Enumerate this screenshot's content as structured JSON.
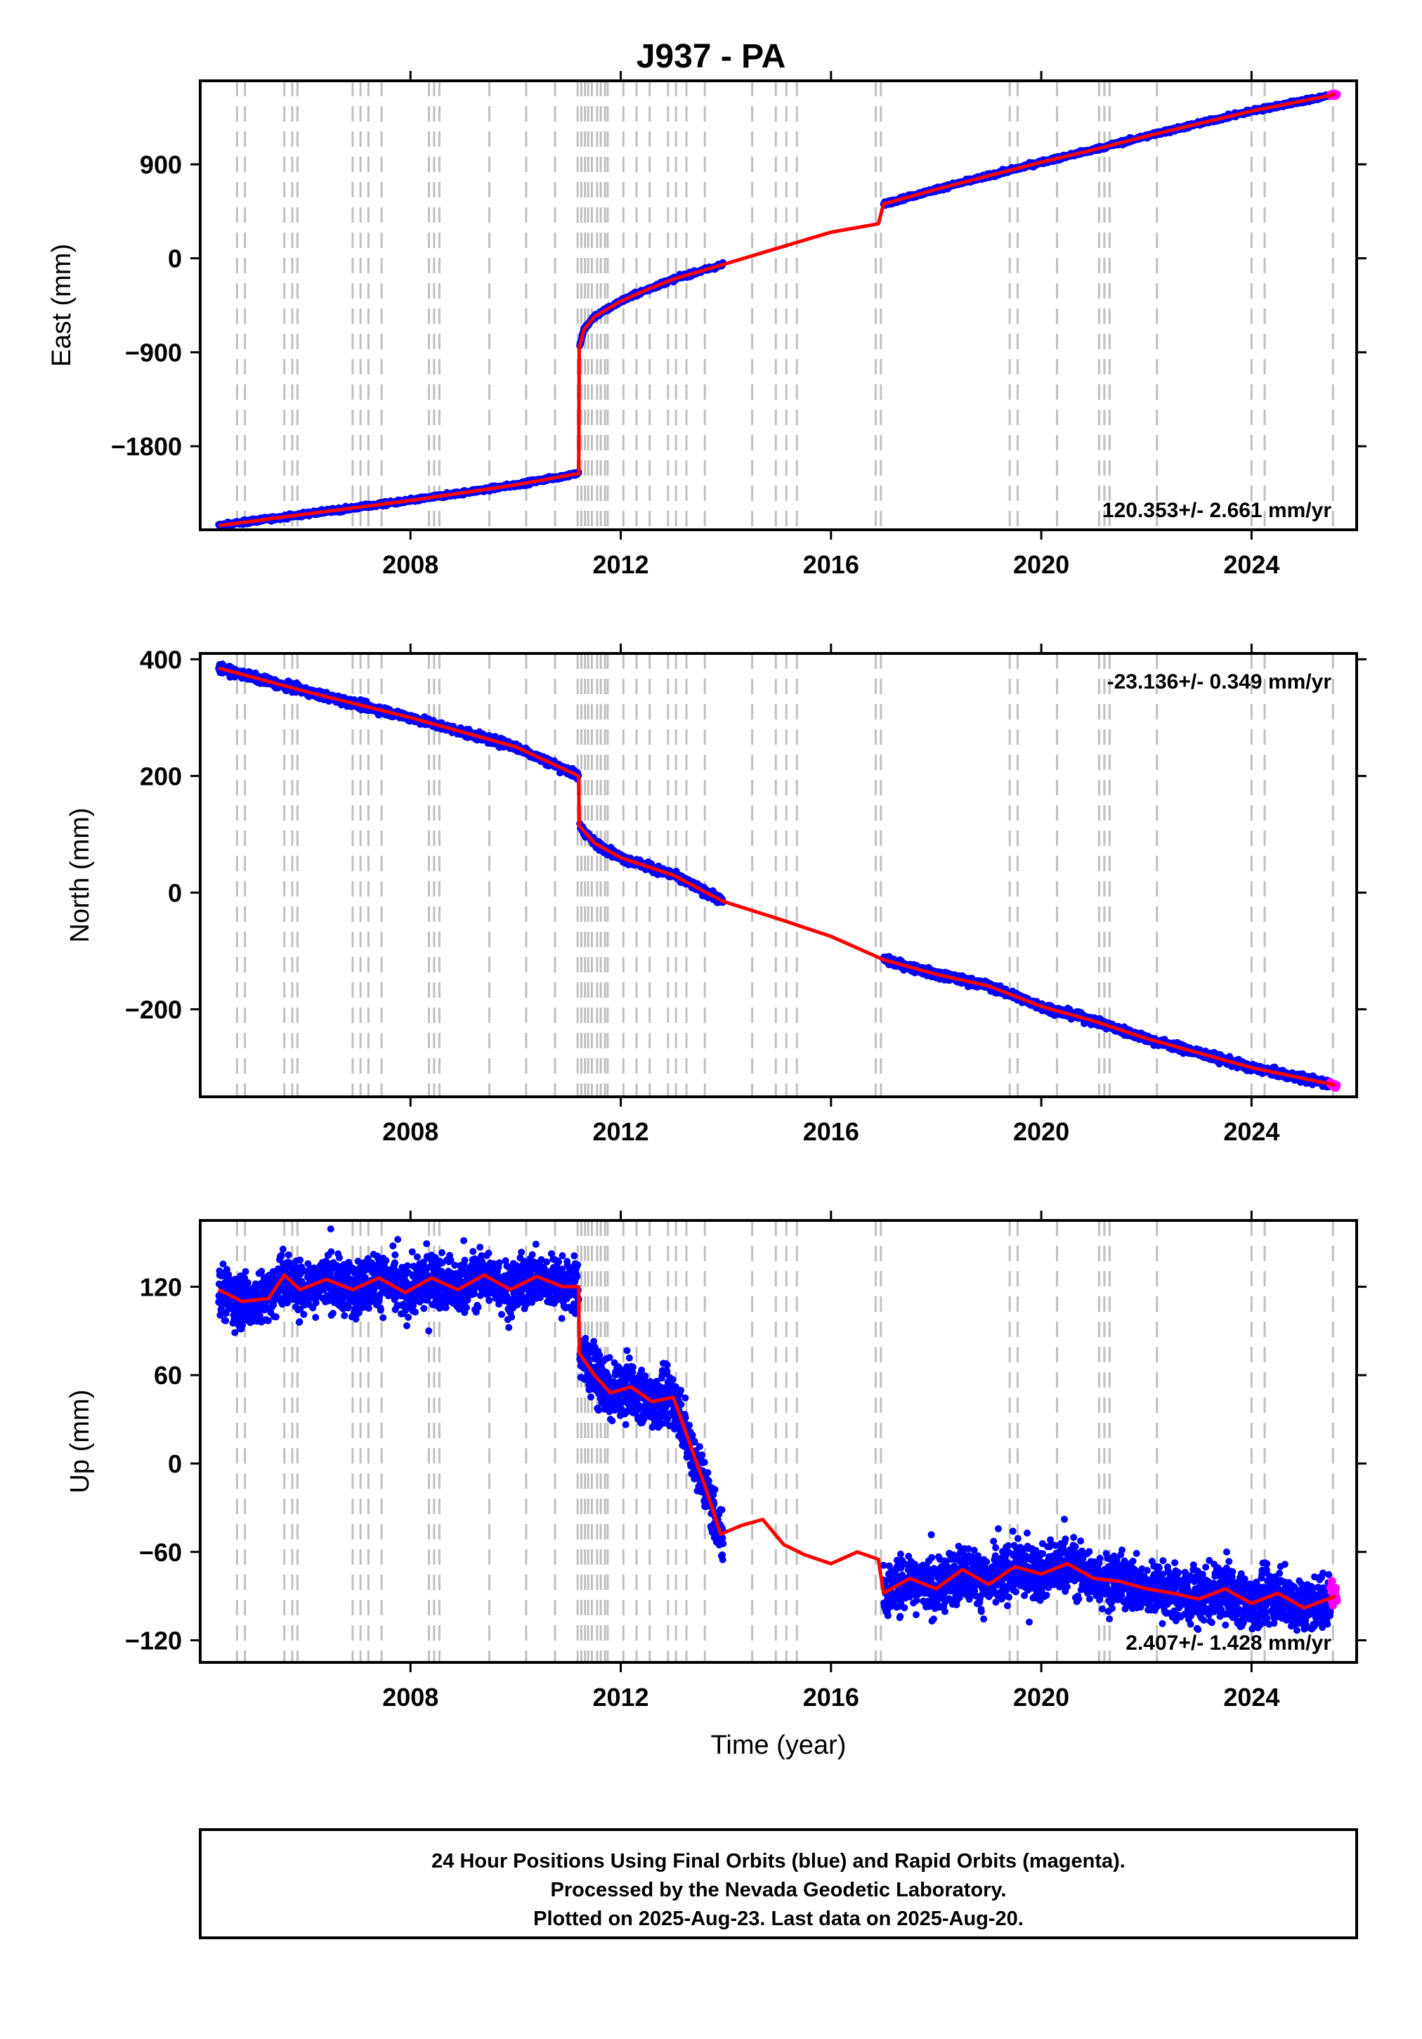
{
  "title": "J937 - PA",
  "colors": {
    "final_orbits": "#0000ff",
    "rapid_orbits": "#ff00ff",
    "model": "#ff0000",
    "event_lines": "#c0c0c0"
  },
  "footer": {
    "lines": [
      "24 Hour Positions Using Final Orbits (blue) and Rapid Orbits (magenta).",
      "Processed by the Nevada Geodetic Laboratory.",
      "Plotted on 2025-Aug-23. Last data on 2025-Aug-20."
    ]
  },
  "chart_data": [
    {
      "type": "scatter",
      "component": "East",
      "ylabel": "East (mm)",
      "xlabel": "",
      "xlim": [
        2004.0,
        2026.0
      ],
      "ylim": [
        -2600,
        1700
      ],
      "xticks": [
        2008,
        2012,
        2016,
        2020,
        2024
      ],
      "yticks": [
        -1800,
        -900,
        0,
        900
      ],
      "ytick_labels": [
        "−1800",
        "−900",
        "0",
        "900"
      ],
      "rate_label": "120.353+/- 2.661 mm/yr",
      "rate_position": "bottom-right",
      "model_line": {
        "x": [
          2004.35,
          2006.0,
          2008.0,
          2010.0,
          2011.2,
          2011.21,
          2011.3,
          2011.5,
          2012.0,
          2012.5,
          2013.0,
          2013.95,
          2015.0,
          2016.0,
          2016.9,
          2017.0,
          2018.0,
          2019.0,
          2020.0,
          2021.0,
          2022.0,
          2023.0,
          2024.0,
          2025.6
        ],
        "y": [
          -2560,
          -2450,
          -2320,
          -2170,
          -2060,
          -860,
          -680,
          -560,
          -410,
          -300,
          -200,
          -60,
          100,
          250,
          330,
          520,
          660,
          790,
          920,
          1040,
          1170,
          1290,
          1410,
          1570
        ]
      },
      "final_segments": [
        [
          2004.35,
          2011.2
        ],
        [
          2011.22,
          2013.95
        ],
        [
          2017.0,
          2025.5
        ]
      ],
      "rapid_segment": [
        2025.5,
        2025.62
      ]
    },
    {
      "type": "scatter",
      "component": "North",
      "ylabel": "North (mm)",
      "xlabel": "",
      "xlim": [
        2004.0,
        2026.0
      ],
      "ylim": [
        -350,
        410
      ],
      "xticks": [
        2008,
        2012,
        2016,
        2020,
        2024
      ],
      "yticks": [
        -200,
        0,
        200,
        400
      ],
      "ytick_labels": [
        "−200",
        "0",
        "200",
        "400"
      ],
      "rate_label": "-23.136+/- 0.349 mm/yr",
      "rate_position": "top-right",
      "model_line": {
        "x": [
          2004.35,
          2006.0,
          2008.0,
          2010.0,
          2011.2,
          2011.21,
          2011.5,
          2012.0,
          2013.0,
          2013.95,
          2015.0,
          2016.0,
          2017.0,
          2018.0,
          2019.0,
          2020.0,
          2021.0,
          2022.0,
          2023.0,
          2024.0,
          2025.6
        ],
        "y": [
          385,
          345,
          300,
          250,
          200,
          115,
          85,
          60,
          30,
          -15,
          -45,
          -75,
          -115,
          -140,
          -160,
          -195,
          -220,
          -250,
          -275,
          -300,
          -330
        ]
      },
      "final_segments": [
        [
          2004.35,
          2011.2
        ],
        [
          2011.22,
          2013.95
        ],
        [
          2017.0,
          2025.5
        ]
      ],
      "rapid_segment": [
        2025.5,
        2025.62
      ]
    },
    {
      "type": "scatter",
      "component": "Up",
      "ylabel": "Up (mm)",
      "xlabel": "Time (year)",
      "xlim": [
        2004.0,
        2026.0
      ],
      "ylim": [
        -135,
        165
      ],
      "xticks": [
        2008,
        2012,
        2016,
        2020,
        2024
      ],
      "yticks": [
        -120,
        -60,
        0,
        60,
        120
      ],
      "ytick_labels": [
        "−120",
        "−60",
        "0",
        "60",
        "120"
      ],
      "rate_label": "2.407+/- 1.428 mm/yr",
      "rate_position": "bottom-right",
      "model_line": {
        "x": [
          2004.35,
          2004.8,
          2005.3,
          2005.6,
          2005.9,
          2006.4,
          2006.9,
          2007.4,
          2007.9,
          2008.4,
          2008.9,
          2009.4,
          2009.9,
          2010.4,
          2010.9,
          2011.2,
          2011.21,
          2011.5,
          2011.8,
          2012.2,
          2012.6,
          2013.0,
          2013.3,
          2013.6,
          2013.9,
          2014.3,
          2014.7,
          2015.1,
          2015.5,
          2016.0,
          2016.5,
          2016.9,
          2017.0,
          2017.5,
          2018.0,
          2018.5,
          2019.0,
          2019.5,
          2020.0,
          2020.5,
          2021.0,
          2021.5,
          2022.0,
          2022.5,
          2023.0,
          2023.5,
          2024.0,
          2024.5,
          2025.0,
          2025.6
        ],
        "y": [
          118,
          110,
          112,
          128,
          118,
          125,
          118,
          126,
          116,
          126,
          118,
          128,
          118,
          127,
          120,
          120,
          75,
          60,
          48,
          52,
          42,
          45,
          15,
          -15,
          -48,
          -42,
          -38,
          -55,
          -62,
          -68,
          -60,
          -65,
          -88,
          -78,
          -85,
          -72,
          -82,
          -70,
          -75,
          -68,
          -78,
          -80,
          -85,
          -88,
          -92,
          -85,
          -95,
          -88,
          -98,
          -90
        ]
      },
      "final_segments": [
        [
          2004.35,
          2011.2
        ],
        [
          2011.22,
          2013.95
        ],
        [
          2017.0,
          2025.5
        ]
      ],
      "rapid_segment": [
        2025.5,
        2025.62
      ]
    }
  ],
  "event_lines": [
    2004.7,
    2004.85,
    2005.6,
    2005.75,
    2005.85,
    2006.9,
    2007.05,
    2007.2,
    2007.45,
    2008.35,
    2008.45,
    2008.55,
    2009.5,
    2010.2,
    2010.75,
    2011.18,
    2011.25,
    2011.32,
    2011.38,
    2011.45,
    2011.55,
    2011.62,
    2011.7,
    2011.75,
    2012.05,
    2012.3,
    2012.55,
    2012.9,
    2013.05,
    2013.25,
    2013.6,
    2014.5,
    2014.95,
    2015.15,
    2015.35,
    2016.85,
    2016.95,
    2019.4,
    2019.55,
    2020.3,
    2021.1,
    2021.2,
    2021.3,
    2022.2,
    2024.0,
    2024.25,
    2025.55
  ]
}
